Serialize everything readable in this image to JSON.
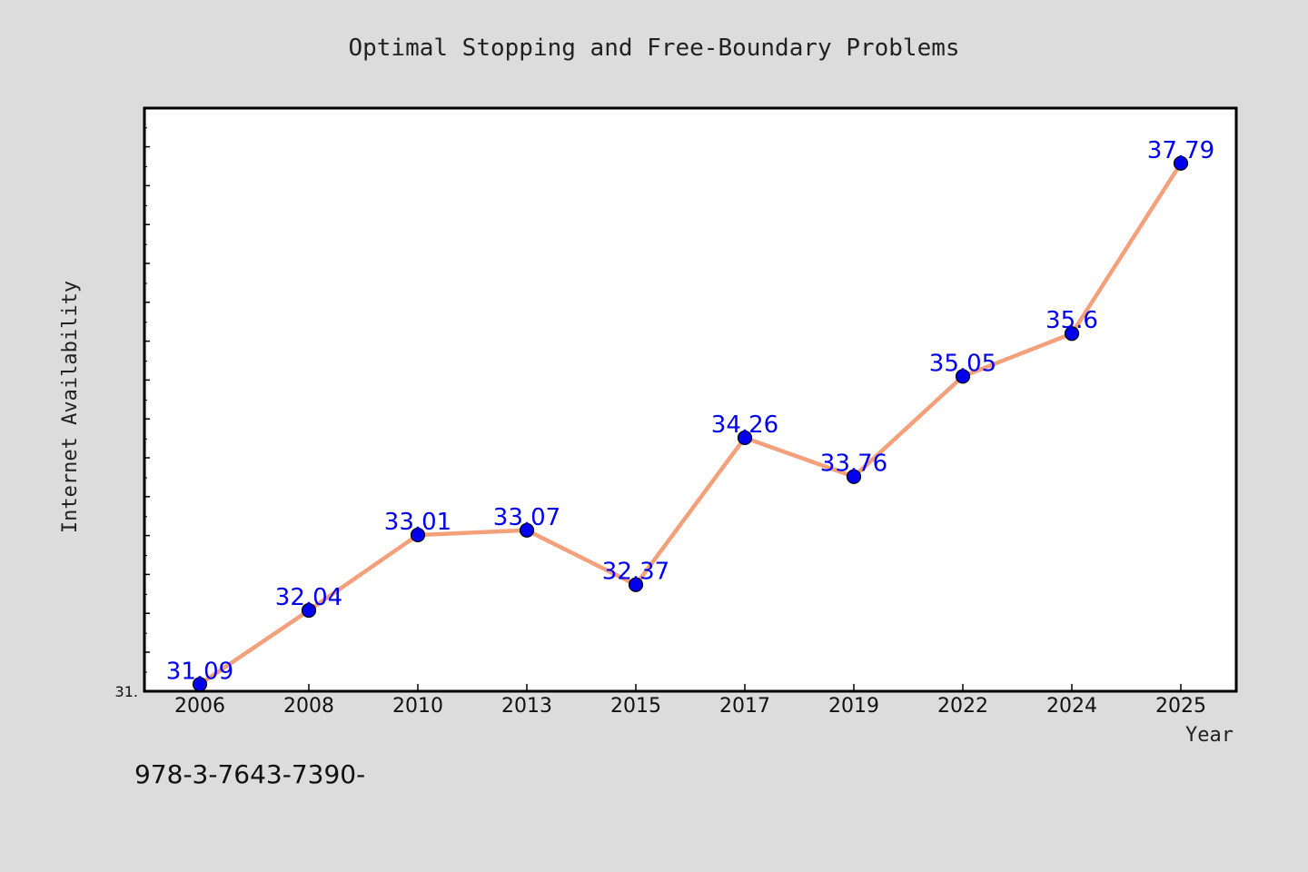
{
  "chart_data": {
    "type": "line",
    "title": "Optimal Stopping and Free-Boundary Problems",
    "xlabel": "Year",
    "ylabel": "Internet Availability",
    "categories": [
      "2006",
      "2008",
      "2010",
      "2013",
      "2015",
      "2017",
      "2019",
      "2022",
      "2024",
      "2025"
    ],
    "series": [
      {
        "values": [
          31.09,
          32.04,
          33.01,
          33.07,
          32.37,
          34.26,
          33.76,
          35.05,
          35.6,
          37.79
        ],
        "labels": [
          "31.09",
          "32.04",
          "33.01",
          "33.07",
          "32.37",
          "34.26",
          "33.76",
          "35.05",
          "35.6",
          "37.79"
        ]
      }
    ],
    "ylim": [
      31.0,
      38.5
    ],
    "ytick_label": "31.",
    "grid": false,
    "legend": "none",
    "colors": {
      "line": "#f4a07a",
      "marker": "#0000ee",
      "data_label": "#0000ee",
      "background": "#dcdcdc",
      "plot_area": "#ffffff"
    }
  },
  "footer": {
    "isbn": "978-3-7643-7390-"
  }
}
